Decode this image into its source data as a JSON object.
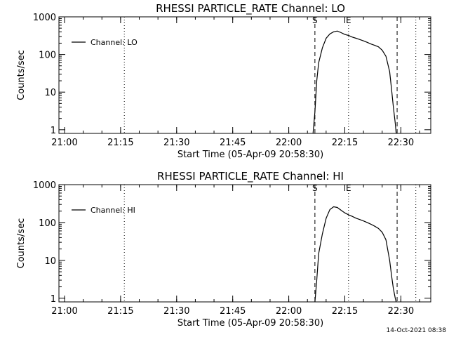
{
  "timestamp": "14-Oct-2021 08:38",
  "chart_data": [
    {
      "type": "line",
      "title": "RHESSI PARTICLE_RATE Channel: LO",
      "xlabel": "Start Time (05-Apr-09 20:58:30)",
      "ylabel": "Counts/sec",
      "yscale": "log",
      "ylim": [
        0.8,
        1000
      ],
      "xlim": [
        "20:58:30",
        "22:38:00"
      ],
      "y_ticks": [
        {
          "value": 1,
          "label": "1"
        },
        {
          "value": 10,
          "label": "10"
        },
        {
          "value": 100,
          "label": "100"
        },
        {
          "value": 1000,
          "label": "1000"
        }
      ],
      "x_ticks": [
        "21:00",
        "21:15",
        "21:30",
        "21:45",
        "22:00",
        "22:15",
        "22:30"
      ],
      "legend": {
        "label": "Channel: LO",
        "position": "top-left"
      },
      "vlines": [
        {
          "time": "21:16",
          "style": "dotted"
        },
        {
          "time": "22:07",
          "style": "dashed",
          "label": "S"
        },
        {
          "time": "22:16",
          "style": "dotted",
          "label": "E"
        },
        {
          "time": "22:29",
          "style": "dashed"
        },
        {
          "time": "22:34",
          "style": "dotted"
        }
      ],
      "series": [
        {
          "name": "Channel: LO",
          "x": [
            "22:06:30",
            "22:07:00",
            "22:07:30",
            "22:08:00",
            "22:09:00",
            "22:10:00",
            "22:11:00",
            "22:12:00",
            "22:13:00",
            "22:14:00",
            "22:15:00",
            "22:16:00",
            "22:17:00",
            "22:18:00",
            "22:19:00",
            "22:20:00",
            "22:21:00",
            "22:22:00",
            "22:23:00",
            "22:24:00",
            "22:25:00",
            "22:26:00",
            "22:27:00",
            "22:27:30",
            "22:28:00",
            "22:28:30",
            "22:28:45"
          ],
          "values": [
            0.8,
            3,
            20,
            60,
            150,
            270,
            350,
            400,
            420,
            380,
            340,
            320,
            290,
            270,
            250,
            230,
            210,
            190,
            175,
            160,
            130,
            90,
            35,
            12,
            4,
            1.5,
            0.8
          ]
        }
      ]
    },
    {
      "type": "line",
      "title": "RHESSI PARTICLE_RATE Channel: HI",
      "xlabel": "Start Time (05-Apr-09 20:58:30)",
      "ylabel": "Counts/sec",
      "yscale": "log",
      "ylim": [
        0.8,
        1000
      ],
      "xlim": [
        "20:58:30",
        "22:38:00"
      ],
      "y_ticks": [
        {
          "value": 1,
          "label": "1"
        },
        {
          "value": 10,
          "label": "10"
        },
        {
          "value": 100,
          "label": "100"
        },
        {
          "value": 1000,
          "label": "1000"
        }
      ],
      "x_ticks": [
        "21:00",
        "21:15",
        "21:30",
        "21:45",
        "22:00",
        "22:15",
        "22:30"
      ],
      "legend": {
        "label": "Channel: HI",
        "position": "top-left"
      },
      "vlines": [
        {
          "time": "21:16",
          "style": "dotted"
        },
        {
          "time": "22:07",
          "style": "dashed",
          "label": "S"
        },
        {
          "time": "22:16",
          "style": "dotted",
          "label": "E"
        },
        {
          "time": "22:29",
          "style": "dashed"
        },
        {
          "time": "22:34",
          "style": "dotted"
        }
      ],
      "series": [
        {
          "name": "Channel: HI",
          "x": [
            "22:07:00",
            "22:07:30",
            "22:08:00",
            "22:09:00",
            "22:10:00",
            "22:11:00",
            "22:12:00",
            "22:13:00",
            "22:14:00",
            "22:15:00",
            "22:16:00",
            "22:17:00",
            "22:18:00",
            "22:19:00",
            "22:20:00",
            "22:21:00",
            "22:22:00",
            "22:23:00",
            "22:24:00",
            "22:25:00",
            "22:26:00",
            "22:27:00",
            "22:27:30",
            "22:28:00",
            "22:28:30",
            "22:28:45"
          ],
          "values": [
            0.8,
            3,
            15,
            50,
            130,
            220,
            260,
            250,
            210,
            180,
            160,
            145,
            130,
            120,
            110,
            100,
            90,
            80,
            70,
            55,
            35,
            10,
            4,
            1.8,
            1.0,
            0.8
          ]
        }
      ]
    }
  ]
}
